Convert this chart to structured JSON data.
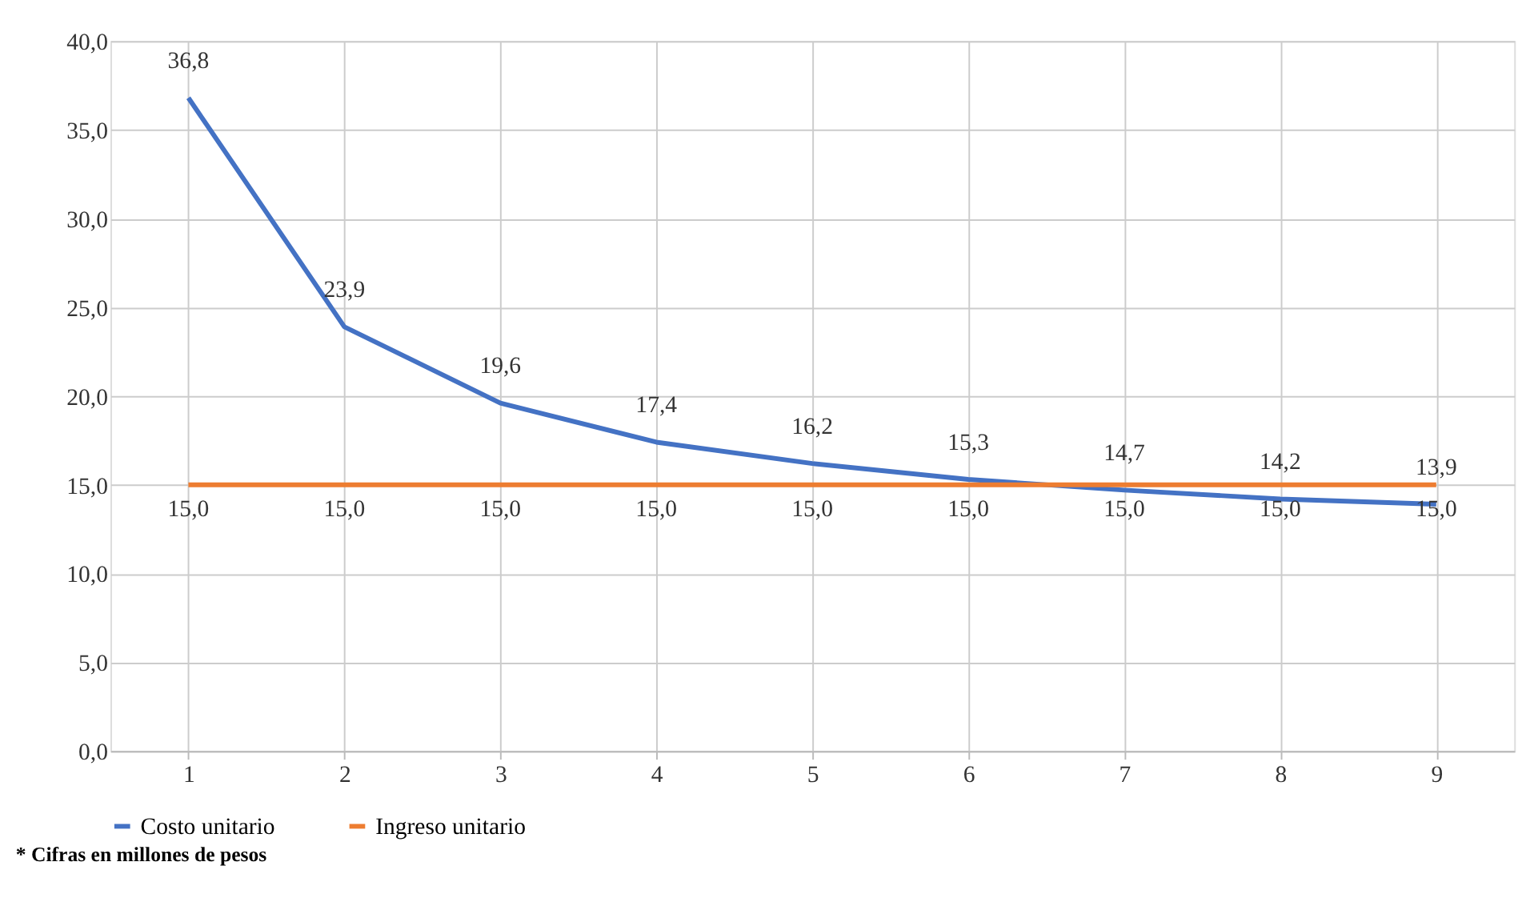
{
  "chart_data": {
    "type": "line",
    "categories": [
      "1",
      "2",
      "3",
      "4",
      "5",
      "6",
      "7",
      "8",
      "9"
    ],
    "series": [
      {
        "name": "Costo unitario",
        "color": "#4472c4",
        "values": [
          36.8,
          23.9,
          19.6,
          17.4,
          16.2,
          15.3,
          14.7,
          14.2,
          13.9
        ],
        "value_labels": [
          "36,8",
          "23,9",
          "19,6",
          "17,4",
          "16,2",
          "15,3",
          "14,7",
          "14,2",
          "13,9"
        ]
      },
      {
        "name": "Ingreso unitario",
        "color": "#ed7d31",
        "values": [
          15.0,
          15.0,
          15.0,
          15.0,
          15.0,
          15.0,
          15.0,
          15.0,
          15.0
        ],
        "value_labels": [
          "15,0",
          "15,0",
          "15,0",
          "15,0",
          "15,0",
          "15,0",
          "15,0",
          "15,0",
          "15,0"
        ]
      }
    ],
    "ylim": [
      0,
      40
    ],
    "yticks": [
      {
        "value": 0,
        "label": "0,0"
      },
      {
        "value": 5,
        "label": "5,0"
      },
      {
        "value": 10,
        "label": "10,0"
      },
      {
        "value": 15,
        "label": "15,0"
      },
      {
        "value": 20,
        "label": "20,0"
      },
      {
        "value": 25,
        "label": "25,0"
      },
      {
        "value": 30,
        "label": "30,0"
      },
      {
        "value": 35,
        "label": "35,0"
      },
      {
        "value": 40,
        "label": "40,0"
      }
    ],
    "grid": true,
    "legend": "bottom",
    "marker": "none",
    "line_style": "solid",
    "annotations": [
      "* Cifras en millones de pesos"
    ]
  }
}
